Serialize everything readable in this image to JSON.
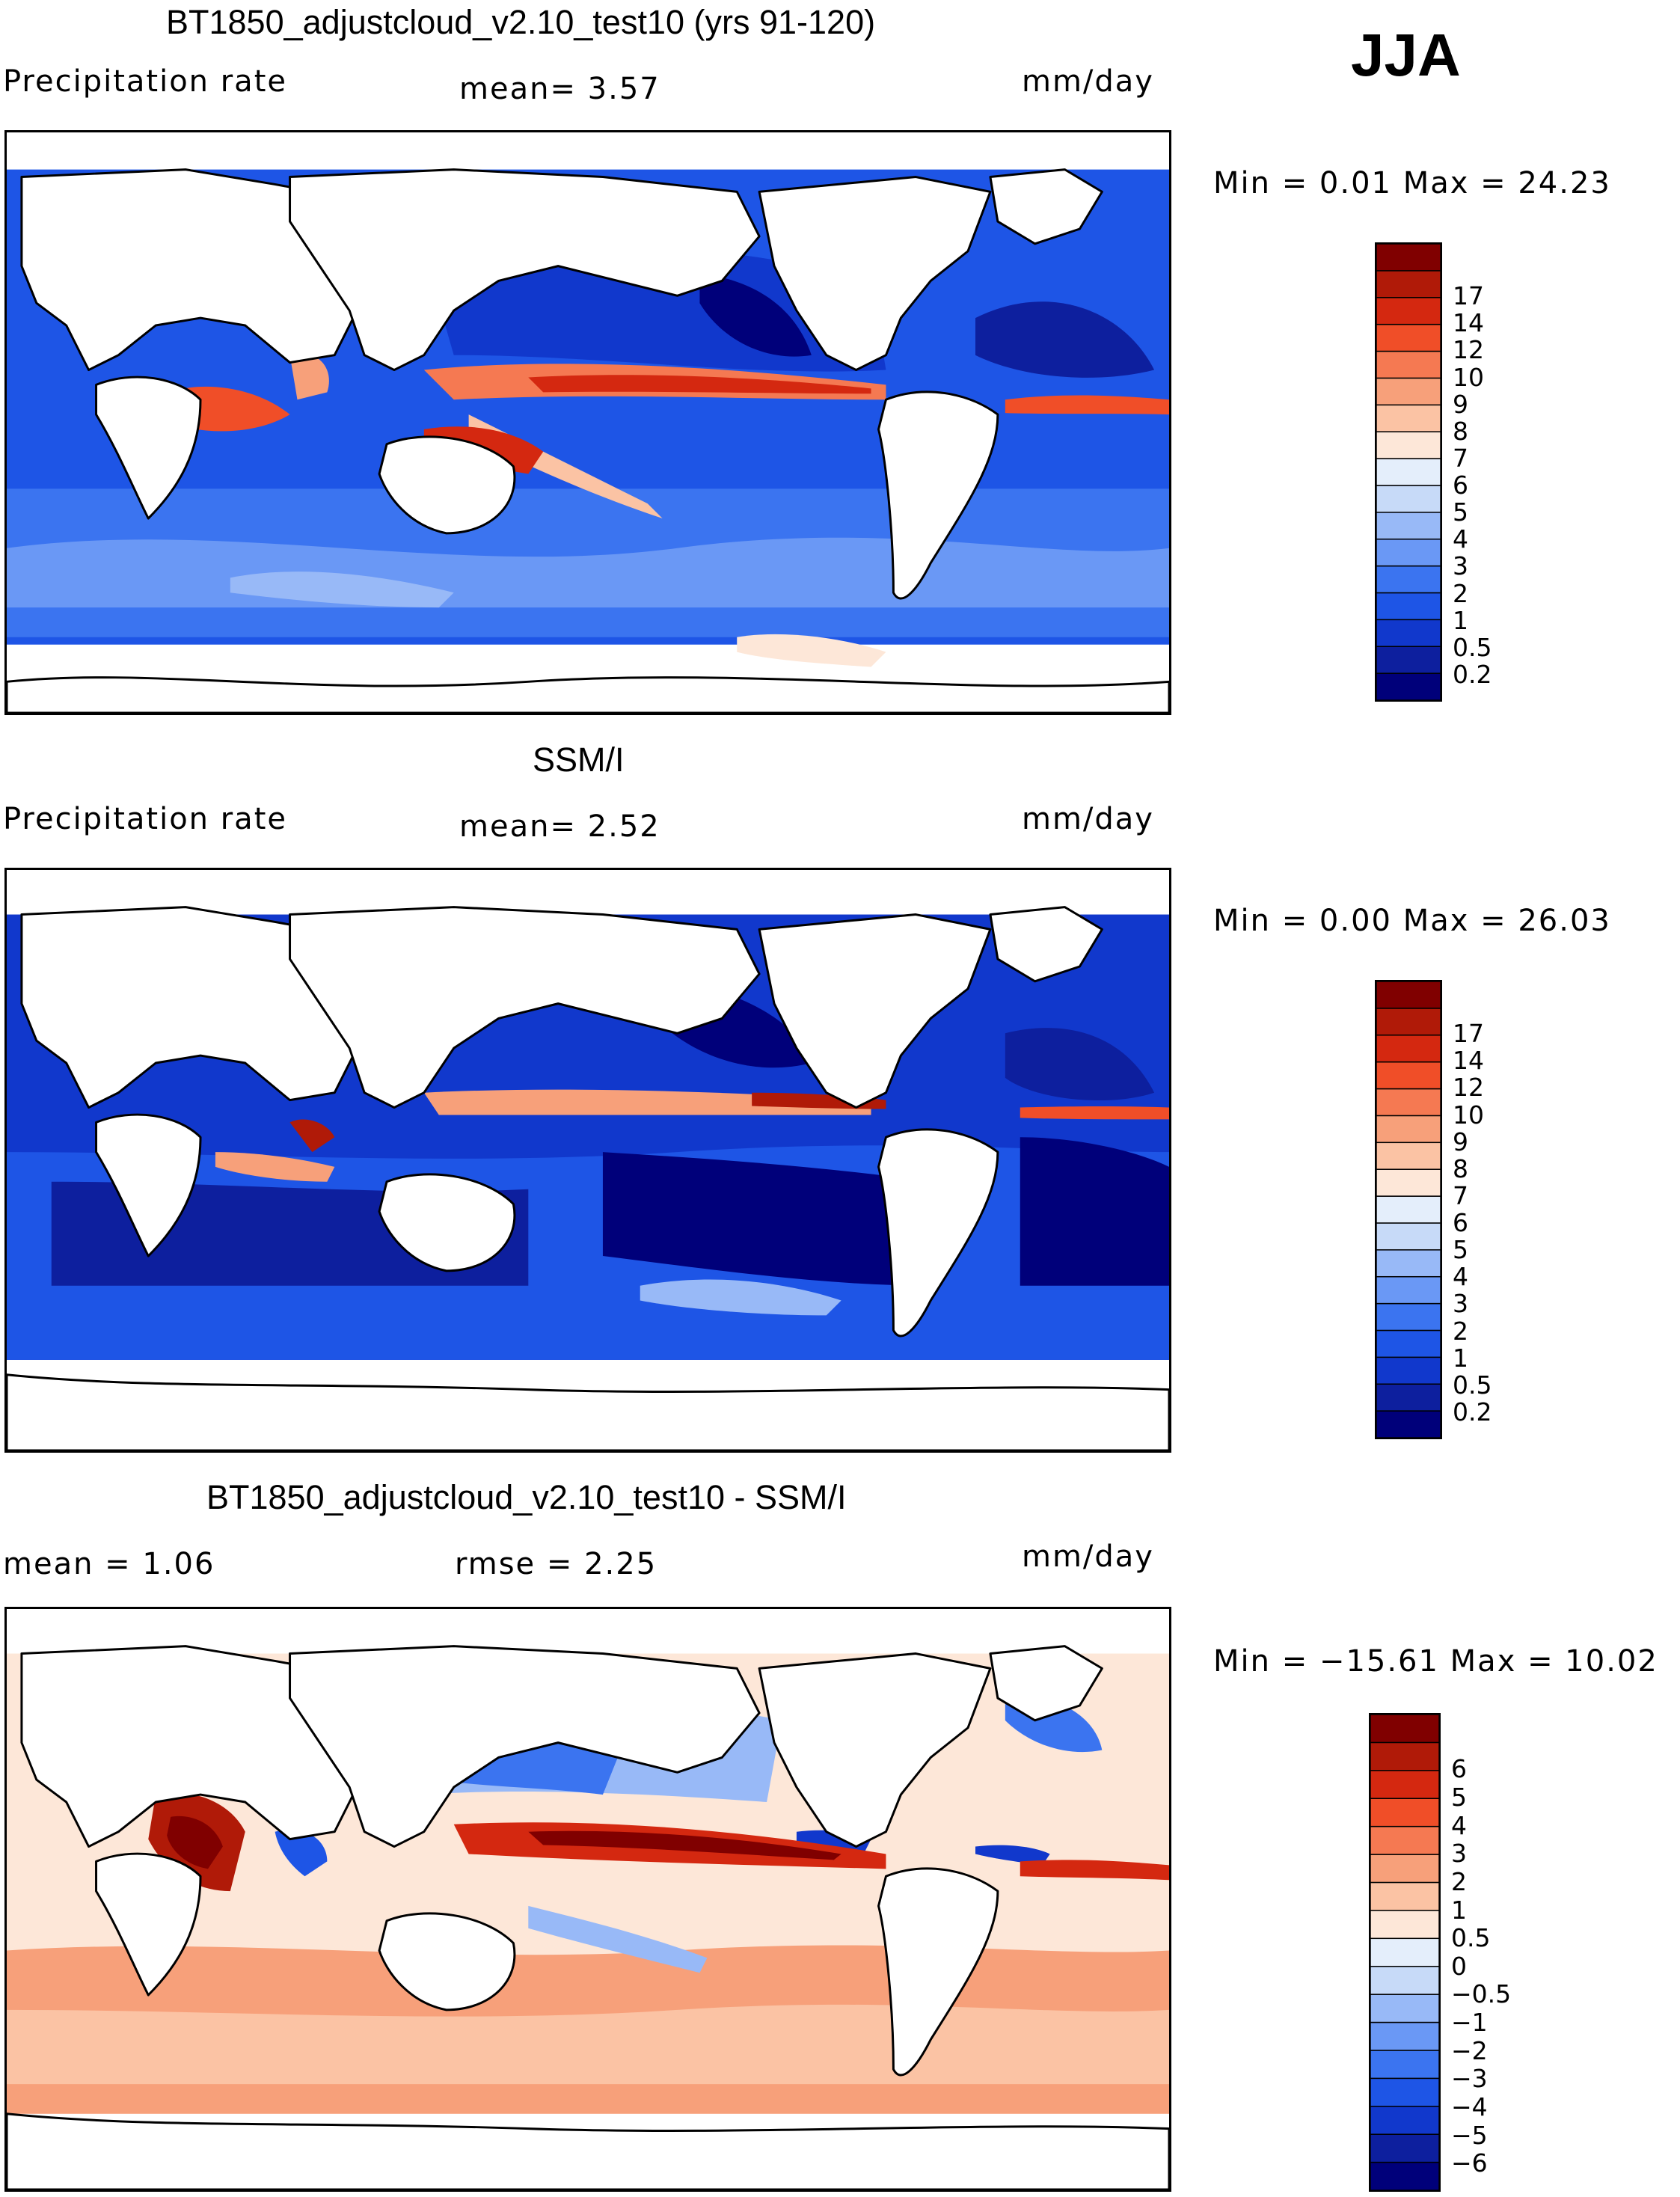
{
  "season_label": "JJA",
  "panels": [
    {
      "title": "BT1850_adjustcloud_v2.10_test10 (yrs 91-120)",
      "left_stat": "Precipitation rate",
      "center_stat": "mean=    3.57",
      "units": "mm/day",
      "minmax": "Min =     0.01  Max =    24.23",
      "colorbar": {
        "colors": [
          "#00007a",
          "#0d1f9e",
          "#1138cc",
          "#1e55e6",
          "#3b74f0",
          "#6a98f5",
          "#98b9f7",
          "#c7daf8",
          "#e4eefb",
          "#fde7d8",
          "#fbc3a4",
          "#f7a07a",
          "#f57952",
          "#f04e28",
          "#d42810",
          "#b01a08",
          "#800000"
        ],
        "labels": [
          "0.2",
          "0.5",
          "1",
          "2",
          "3",
          "4",
          "5",
          "6",
          "7",
          "8",
          "9",
          "10",
          "12",
          "14",
          "17"
        ]
      }
    },
    {
      "title": "SSM/I",
      "left_stat": "Precipitation rate",
      "center_stat": "mean=    2.52",
      "units": "mm/day",
      "minmax": "Min =     0.00  Max =    26.03",
      "colorbar": {
        "colors": [
          "#00007a",
          "#0d1f9e",
          "#1138cc",
          "#1e55e6",
          "#3b74f0",
          "#6a98f5",
          "#98b9f7",
          "#c7daf8",
          "#e4eefb",
          "#fde7d8",
          "#fbc3a4",
          "#f7a07a",
          "#f57952",
          "#f04e28",
          "#d42810",
          "#b01a08",
          "#800000"
        ],
        "labels": [
          "0.2",
          "0.5",
          "1",
          "2",
          "3",
          "4",
          "5",
          "6",
          "7",
          "8",
          "9",
          "10",
          "12",
          "14",
          "17"
        ]
      }
    },
    {
      "title": "BT1850_adjustcloud_v2.10_test10 - SSM/I",
      "left_stat": "mean =     1.06",
      "center_stat": "rmse =     2.25",
      "units": "mm/day",
      "minmax": "Min = −15.61  Max =    10.02",
      "colorbar": {
        "colors": [
          "#00007a",
          "#0d1f9e",
          "#1138cc",
          "#1e55e6",
          "#3b74f0",
          "#6a98f5",
          "#98b9f7",
          "#c7daf8",
          "#e4eefb",
          "#fde7d8",
          "#fbc3a4",
          "#f7a07a",
          "#f57952",
          "#f04e28",
          "#d42810",
          "#b01a08",
          "#800000"
        ],
        "labels": [
          "−6",
          "−5",
          "−4",
          "−3",
          "−2",
          "−1",
          "−0.5",
          "0",
          "0.5",
          "1",
          "2",
          "3",
          "4",
          "5",
          "6"
        ]
      }
    }
  ]
}
